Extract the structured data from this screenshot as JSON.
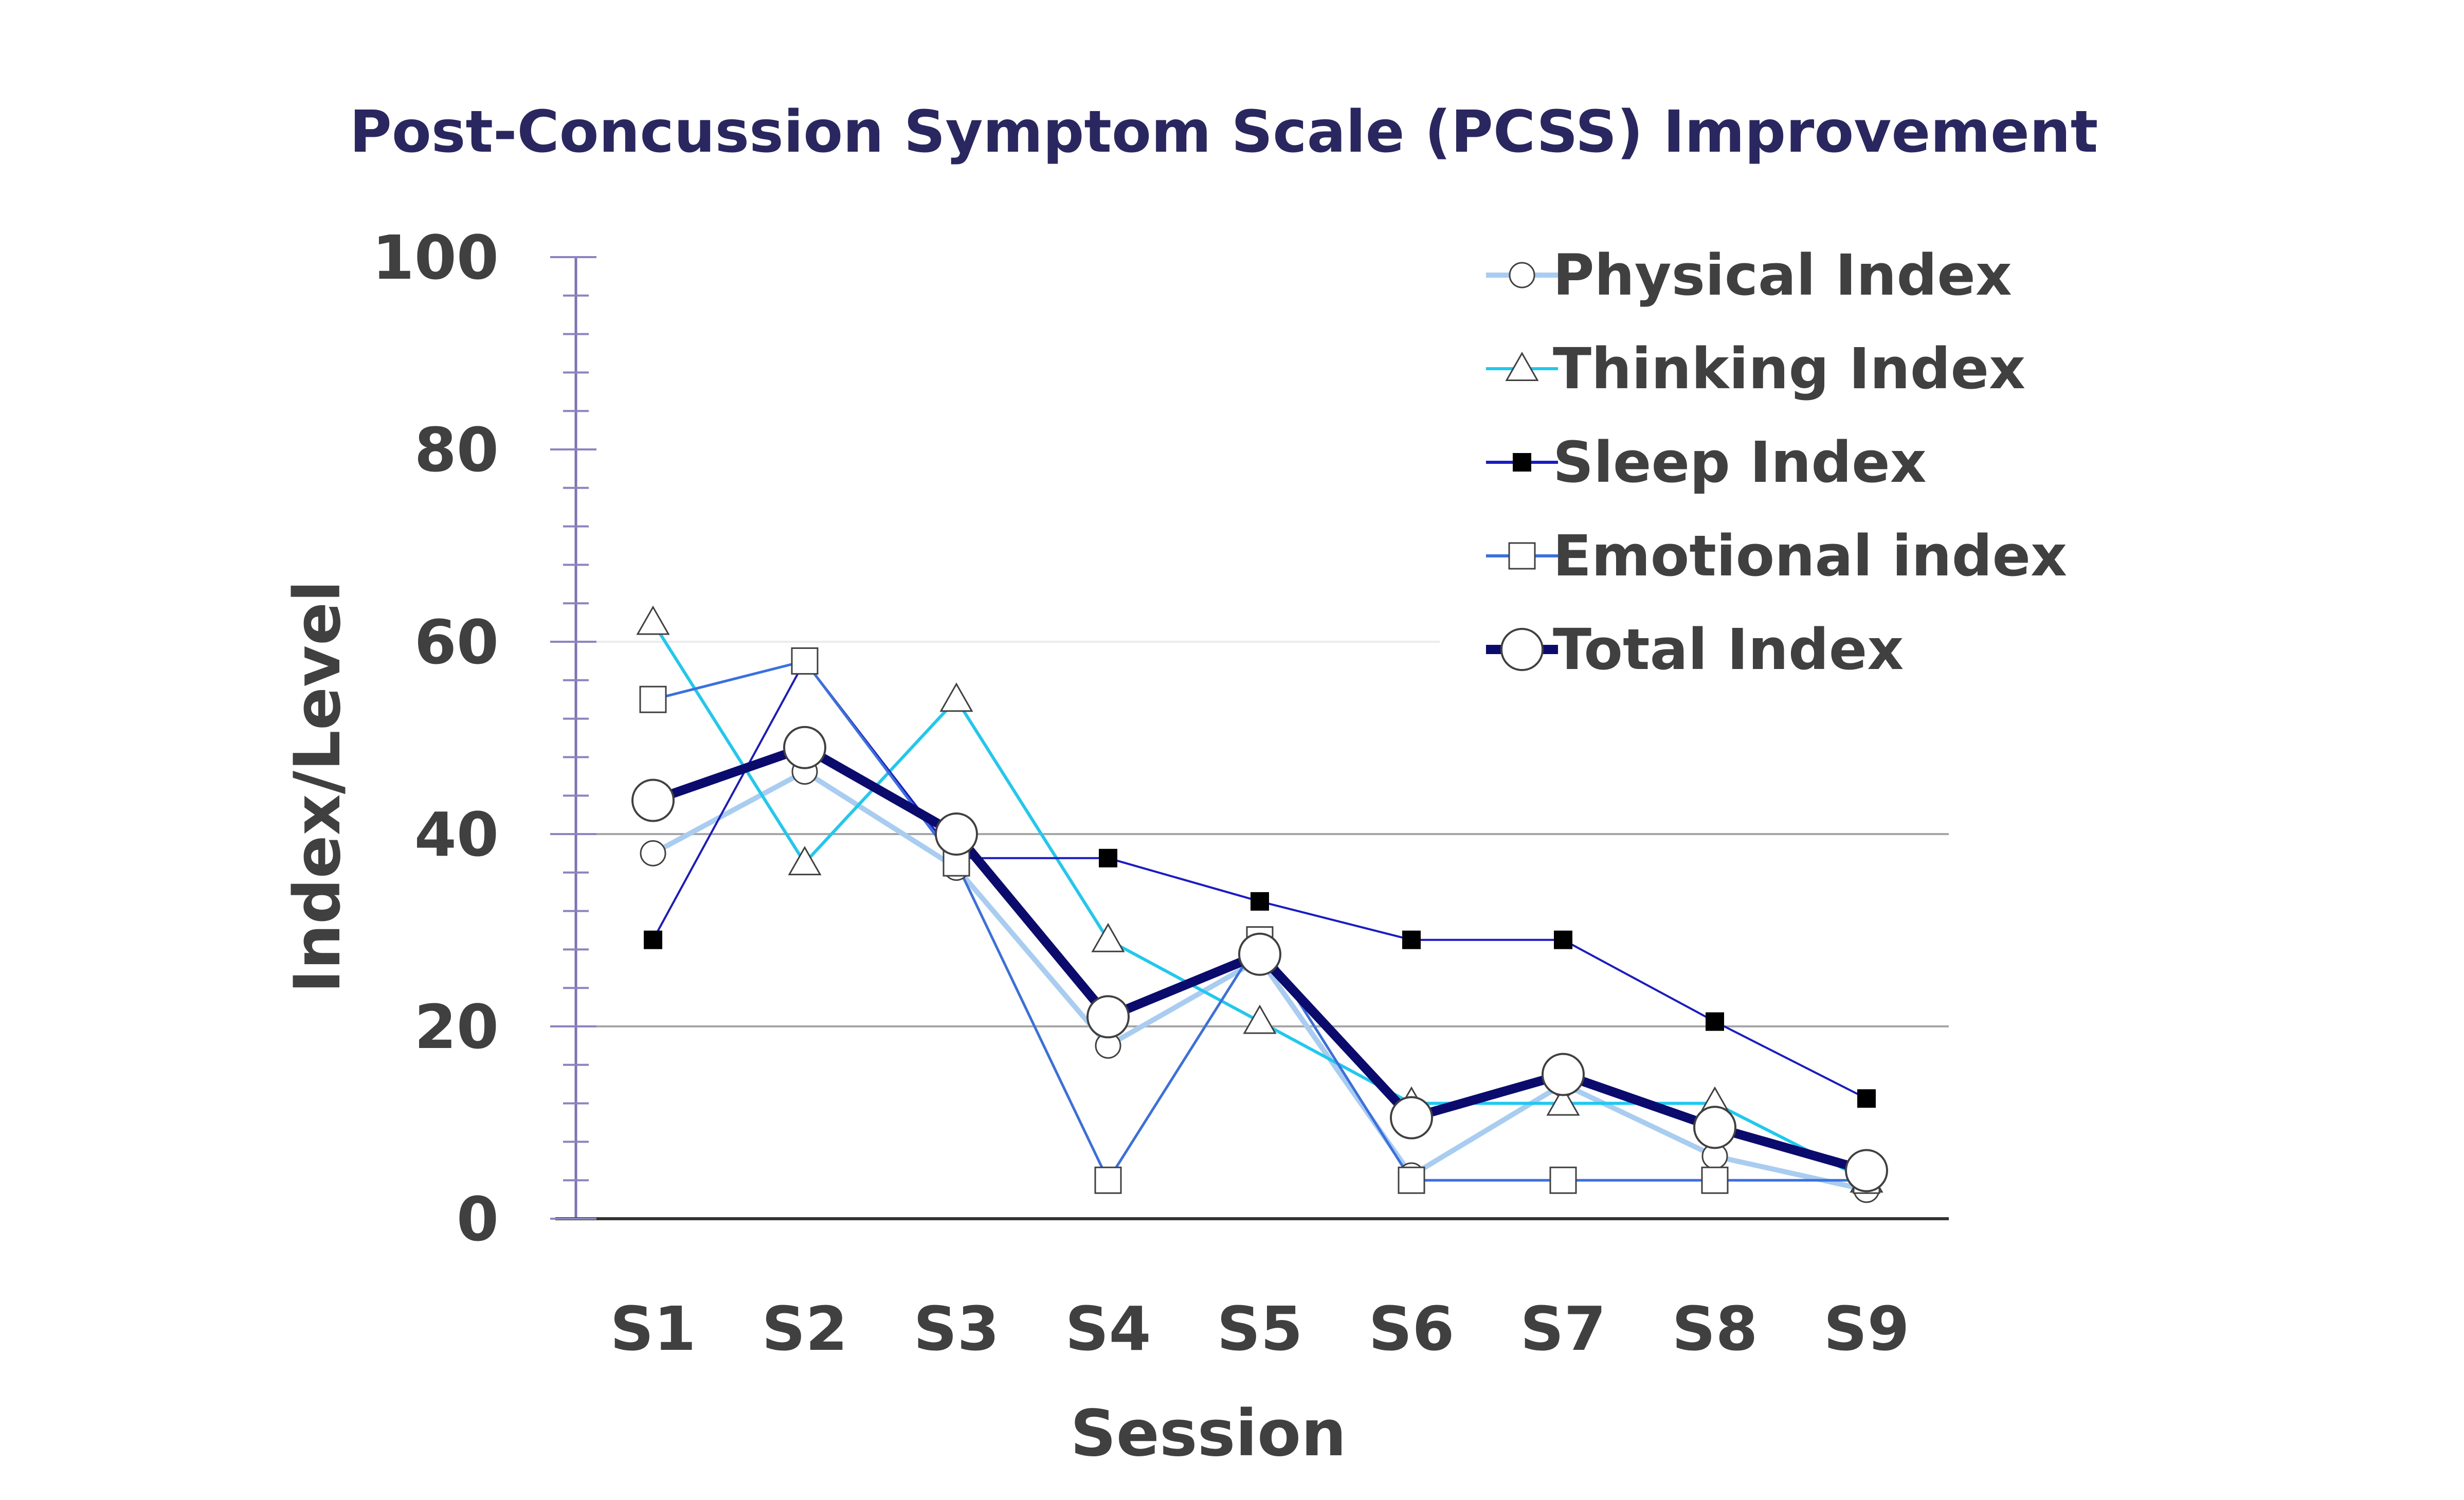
{
  "chart_data": {
    "type": "line",
    "title": "Post-Concussion Symptom Scale (PCSS) Improvement",
    "xlabel": "Session",
    "ylabel": "Index/Level",
    "ylim": [
      0,
      100
    ],
    "yticks": [
      "0",
      "20",
      "40",
      "60",
      "80",
      "100"
    ],
    "categories": [
      "S1",
      "S2",
      "S3",
      "S4",
      "S5",
      "S6",
      "S7",
      "S8",
      "S9"
    ],
    "legend_position": "top-right",
    "series": [
      {
        "name": "Physical Index",
        "marker": "circle",
        "color": "#a9cdf0",
        "values": [
          38,
          46.5,
          36.5,
          18,
          27,
          4.5,
          14,
          6.5,
          3
        ]
      },
      {
        "name": "Thinking Index",
        "marker": "triangle",
        "color": "#1ec8ee",
        "values": [
          62,
          37,
          54,
          29,
          20.5,
          12,
          12,
          12,
          4
        ]
      },
      {
        "name": "Sleep Index",
        "marker": "square-filled",
        "color": "#1b1bc4",
        "values": [
          29,
          58,
          37.5,
          37.5,
          33,
          29,
          29,
          20.5,
          12.5
        ]
      },
      {
        "name": "Emotional index",
        "marker": "square",
        "color": "#3a6fe0",
        "values": [
          54,
          58,
          37,
          4,
          29,
          4,
          4,
          4,
          4
        ]
      },
      {
        "name": "Total Index",
        "marker": "circle-large",
        "color": "#0b0b6e",
        "values": [
          43.5,
          49,
          40,
          21,
          27.5,
          10.5,
          15,
          9.5,
          5
        ]
      }
    ]
  }
}
